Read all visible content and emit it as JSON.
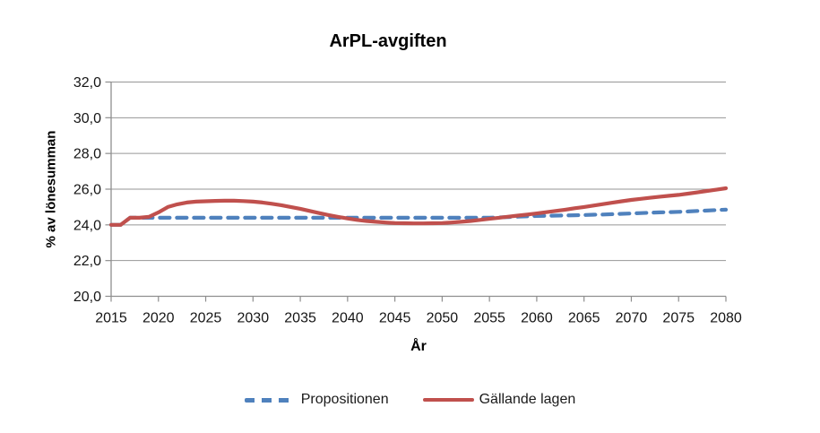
{
  "chart_data": {
    "type": "line",
    "title": "ArPL-avgiften",
    "xlabel": "År",
    "ylabel": "% av lönesumman",
    "xlim": [
      2015,
      2080
    ],
    "ylim": [
      20,
      32
    ],
    "grid": "horizontal",
    "legend_position": "bottom",
    "background_color": "#ffffff",
    "axis_color": "#8e8e8e",
    "gridline_color": "#969696",
    "ytick_values": [
      20,
      22,
      24,
      26,
      28,
      30,
      32
    ],
    "ytick_labels": [
      "20,0",
      "22,0",
      "24,0",
      "26,0",
      "28,0",
      "30,0",
      "32,0"
    ],
    "xticks": [
      2015,
      2020,
      2025,
      2030,
      2035,
      2040,
      2045,
      2050,
      2055,
      2060,
      2065,
      2070,
      2075,
      2080
    ],
    "x": [
      2015,
      2016,
      2017,
      2018,
      2019,
      2020,
      2021,
      2022,
      2023,
      2024,
      2025,
      2026,
      2027,
      2028,
      2029,
      2030,
      2031,
      2032,
      2033,
      2034,
      2035,
      2036,
      2037,
      2038,
      2039,
      2040,
      2041,
      2042,
      2043,
      2044,
      2045,
      2046,
      2047,
      2048,
      2049,
      2050,
      2051,
      2052,
      2053,
      2054,
      2055,
      2056,
      2057,
      2058,
      2059,
      2060,
      2061,
      2062,
      2063,
      2064,
      2065,
      2066,
      2067,
      2068,
      2069,
      2070,
      2071,
      2072,
      2073,
      2074,
      2075,
      2076,
      2077,
      2078,
      2079,
      2080
    ],
    "series": [
      {
        "name": "Propositionen",
        "color": "#4F81BD",
        "style": "dashed",
        "values": [
          24.0,
          24.0,
          24.4,
          24.4,
          24.4,
          24.4,
          24.4,
          24.4,
          24.4,
          24.4,
          24.4,
          24.4,
          24.4,
          24.4,
          24.4,
          24.4,
          24.4,
          24.4,
          24.4,
          24.4,
          24.4,
          24.4,
          24.4,
          24.4,
          24.4,
          24.4,
          24.4,
          24.4,
          24.4,
          24.4,
          24.4,
          24.4,
          24.4,
          24.4,
          24.4,
          24.4,
          24.4,
          24.4,
          24.4,
          24.4,
          24.4,
          24.42,
          24.44,
          24.46,
          24.48,
          24.5,
          24.51,
          24.52,
          24.53,
          24.54,
          24.55,
          24.57,
          24.58,
          24.6,
          24.62,
          24.64,
          24.66,
          24.68,
          24.7,
          24.71,
          24.73,
          24.75,
          24.78,
          24.8,
          24.83,
          24.85
        ]
      },
      {
        "name": "Gällande lagen",
        "color": "#C0504D",
        "style": "solid",
        "values": [
          24.0,
          24.0,
          24.4,
          24.4,
          24.45,
          24.7,
          25.0,
          25.15,
          25.25,
          25.3,
          25.32,
          25.34,
          25.35,
          25.35,
          25.33,
          25.3,
          25.25,
          25.18,
          25.1,
          25.0,
          24.9,
          24.78,
          24.66,
          24.55,
          24.45,
          24.36,
          24.28,
          24.22,
          24.17,
          24.13,
          24.1,
          24.09,
          24.08,
          24.08,
          24.09,
          24.1,
          24.13,
          24.17,
          24.22,
          24.28,
          24.34,
          24.4,
          24.46,
          24.52,
          24.58,
          24.64,
          24.71,
          24.78,
          24.85,
          24.93,
          25.0,
          25.08,
          25.16,
          25.24,
          25.32,
          25.4,
          25.46,
          25.52,
          25.58,
          25.63,
          25.68,
          25.75,
          25.82,
          25.9,
          25.97,
          26.05
        ]
      }
    ]
  }
}
